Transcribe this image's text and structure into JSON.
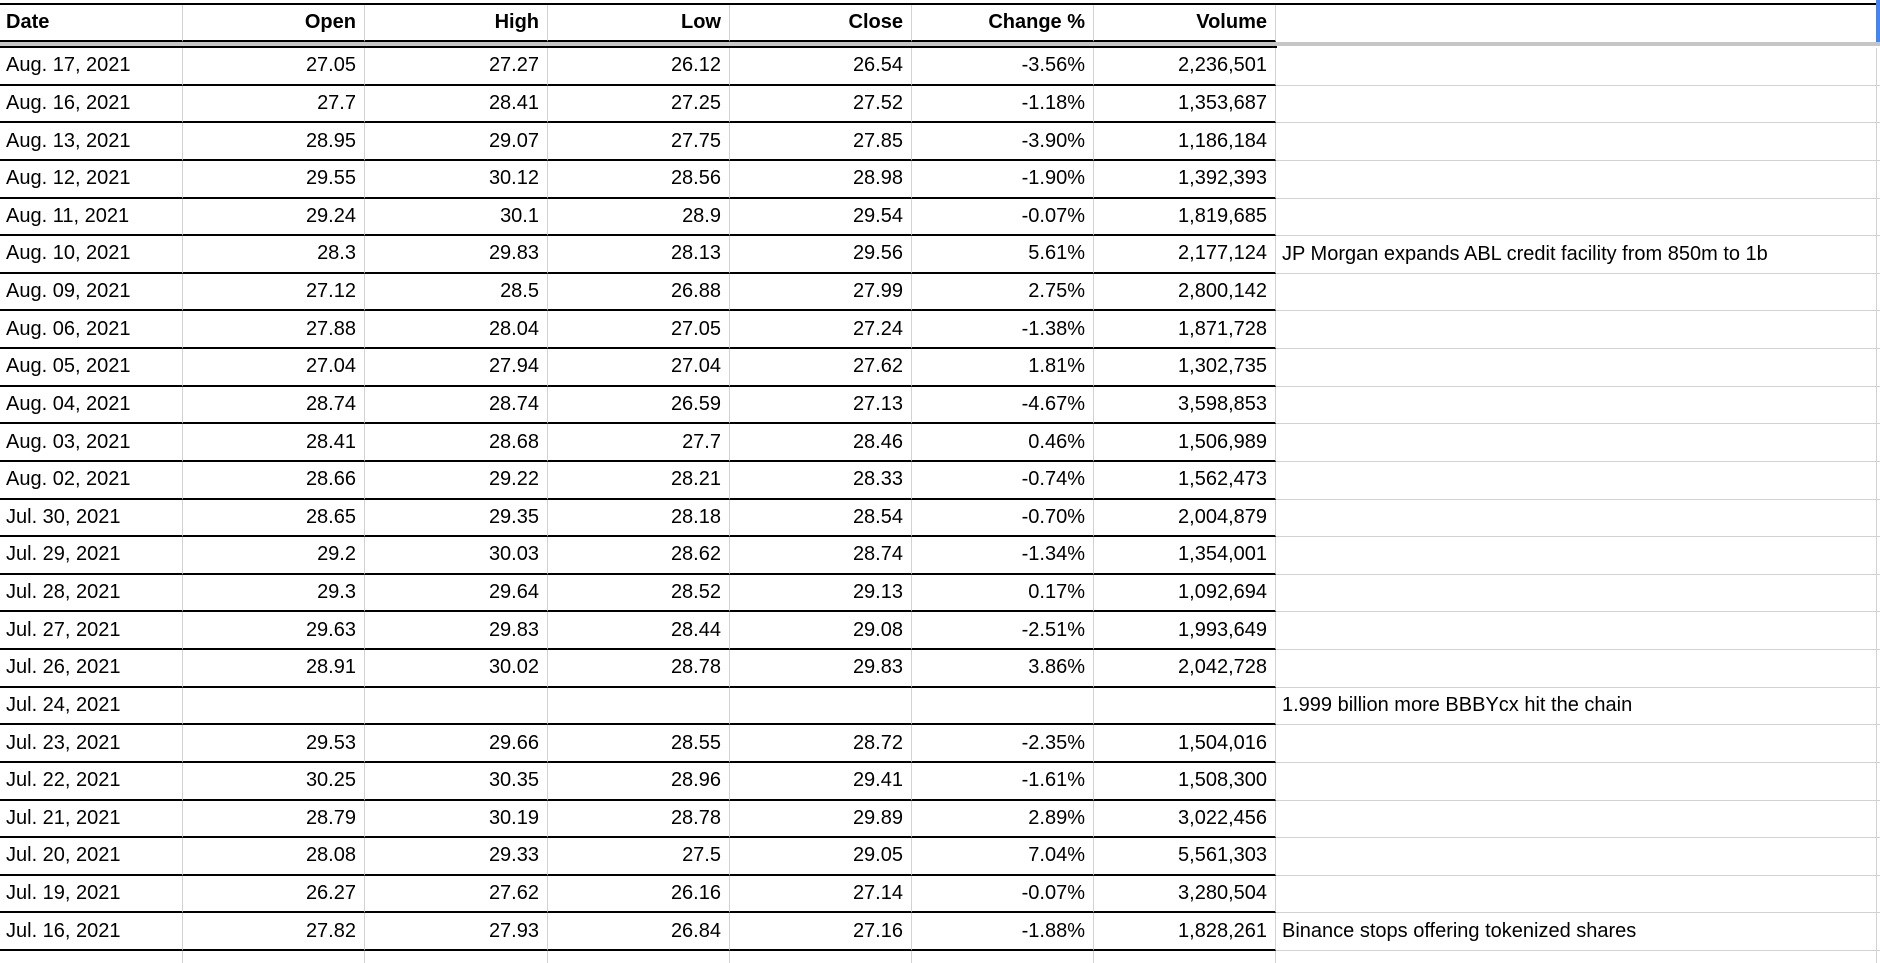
{
  "sheet": {
    "app": "spreadsheet",
    "columns": [
      {
        "label": "Date"
      },
      {
        "label": "Open"
      },
      {
        "label": "High"
      },
      {
        "label": "Low"
      },
      {
        "label": "Close"
      },
      {
        "label": "Change %"
      },
      {
        "label": "Volume"
      }
    ],
    "rows": [
      {
        "date": "Aug. 17, 2021",
        "open": "27.05",
        "high": "27.27",
        "low": "26.12",
        "close": "26.54",
        "change": "-3.56%",
        "volume": "2,236,501",
        "note": ""
      },
      {
        "date": "Aug. 16, 2021",
        "open": "27.7",
        "high": "28.41",
        "low": "27.25",
        "close": "27.52",
        "change": "-1.18%",
        "volume": "1,353,687",
        "note": ""
      },
      {
        "date": "Aug. 13, 2021",
        "open": "28.95",
        "high": "29.07",
        "low": "27.75",
        "close": "27.85",
        "change": "-3.90%",
        "volume": "1,186,184",
        "note": ""
      },
      {
        "date": "Aug. 12, 2021",
        "open": "29.55",
        "high": "30.12",
        "low": "28.56",
        "close": "28.98",
        "change": "-1.90%",
        "volume": "1,392,393",
        "note": ""
      },
      {
        "date": "Aug. 11, 2021",
        "open": "29.24",
        "high": "30.1",
        "low": "28.9",
        "close": "29.54",
        "change": "-0.07%",
        "volume": "1,819,685",
        "note": ""
      },
      {
        "date": "Aug. 10, 2021",
        "open": "28.3",
        "high": "29.83",
        "low": "28.13",
        "close": "29.56",
        "change": "5.61%",
        "volume": "2,177,124",
        "note": "JP Morgan expands ABL credit facility from 850m to 1b"
      },
      {
        "date": "Aug. 09, 2021",
        "open": "27.12",
        "high": "28.5",
        "low": "26.88",
        "close": "27.99",
        "change": "2.75%",
        "volume": "2,800,142",
        "note": ""
      },
      {
        "date": "Aug. 06, 2021",
        "open": "27.88",
        "high": "28.04",
        "low": "27.05",
        "close": "27.24",
        "change": "-1.38%",
        "volume": "1,871,728",
        "note": ""
      },
      {
        "date": "Aug. 05, 2021",
        "open": "27.04",
        "high": "27.94",
        "low": "27.04",
        "close": "27.62",
        "change": "1.81%",
        "volume": "1,302,735",
        "note": ""
      },
      {
        "date": "Aug. 04, 2021",
        "open": "28.74",
        "high": "28.74",
        "low": "26.59",
        "close": "27.13",
        "change": "-4.67%",
        "volume": "3,598,853",
        "note": ""
      },
      {
        "date": "Aug. 03, 2021",
        "open": "28.41",
        "high": "28.68",
        "low": "27.7",
        "close": "28.46",
        "change": "0.46%",
        "volume": "1,506,989",
        "note": ""
      },
      {
        "date": "Aug. 02, 2021",
        "open": "28.66",
        "high": "29.22",
        "low": "28.21",
        "close": "28.33",
        "change": "-0.74%",
        "volume": "1,562,473",
        "note": ""
      },
      {
        "date": "Jul. 30, 2021",
        "open": "28.65",
        "high": "29.35",
        "low": "28.18",
        "close": "28.54",
        "change": "-0.70%",
        "volume": "2,004,879",
        "note": ""
      },
      {
        "date": "Jul. 29, 2021",
        "open": "29.2",
        "high": "30.03",
        "low": "28.62",
        "close": "28.74",
        "change": "-1.34%",
        "volume": "1,354,001",
        "note": ""
      },
      {
        "date": "Jul. 28, 2021",
        "open": "29.3",
        "high": "29.64",
        "low": "28.52",
        "close": "29.13",
        "change": "0.17%",
        "volume": "1,092,694",
        "note": ""
      },
      {
        "date": "Jul. 27, 2021",
        "open": "29.63",
        "high": "29.83",
        "low": "28.44",
        "close": "29.08",
        "change": "-2.51%",
        "volume": "1,993,649",
        "note": ""
      },
      {
        "date": "Jul. 26, 2021",
        "open": "28.91",
        "high": "30.02",
        "low": "28.78",
        "close": "29.83",
        "change": "3.86%",
        "volume": "2,042,728",
        "note": ""
      },
      {
        "date": "Jul. 24, 2021",
        "open": "",
        "high": "",
        "low": "",
        "close": "",
        "change": "",
        "volume": "",
        "note": "1.999 billion more BBBYcx hit the chain"
      },
      {
        "date": "Jul. 23, 2021",
        "open": "29.53",
        "high": "29.66",
        "low": "28.55",
        "close": "28.72",
        "change": "-2.35%",
        "volume": "1,504,016",
        "note": ""
      },
      {
        "date": "Jul. 22, 2021",
        "open": "30.25",
        "high": "30.35",
        "low": "28.96",
        "close": "29.41",
        "change": "-1.61%",
        "volume": "1,508,300",
        "note": ""
      },
      {
        "date": "Jul. 21, 2021",
        "open": "28.79",
        "high": "30.19",
        "low": "28.78",
        "close": "29.89",
        "change": "2.89%",
        "volume": "3,022,456",
        "note": ""
      },
      {
        "date": "Jul. 20, 2021",
        "open": "28.08",
        "high": "29.33",
        "low": "27.5",
        "close": "29.05",
        "change": "7.04%",
        "volume": "5,561,303",
        "note": ""
      },
      {
        "date": "Jul. 19, 2021",
        "open": "26.27",
        "high": "27.62",
        "low": "26.16",
        "close": "27.14",
        "change": "-0.07%",
        "volume": "3,280,504",
        "note": ""
      },
      {
        "date": "Jul. 16, 2021",
        "open": "27.82",
        "high": "27.93",
        "low": "26.84",
        "close": "27.16",
        "change": "-1.88%",
        "volume": "1,828,261",
        "note": "Binance stops offering tokenized shares"
      }
    ],
    "colors": {
      "border": "#000000",
      "gridline": "#d2d2d2",
      "divider": "#c6c6c6",
      "accent": "#4285f4"
    }
  }
}
